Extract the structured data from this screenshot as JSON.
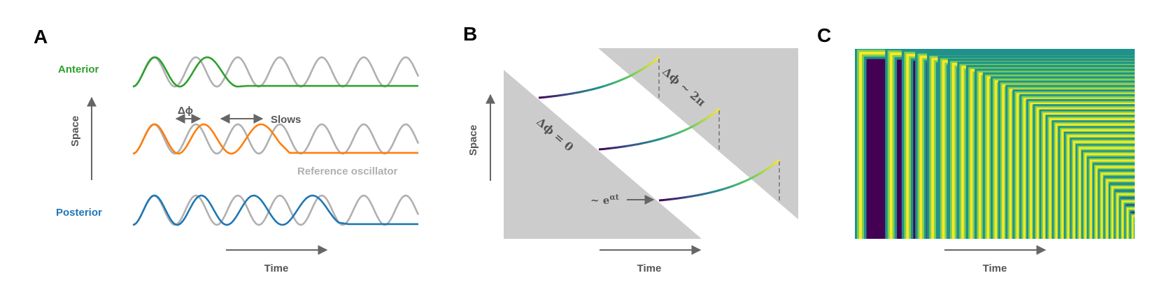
{
  "panels": {
    "a": {
      "letter": "A",
      "anterior_label": "Anterior",
      "posterior_label": "Posterior",
      "space_label": "Space",
      "time_label": "Time",
      "delta_phi_label": "Δϕ",
      "slows_label": "Slows",
      "reference_label": "Reference oscillator"
    },
    "b": {
      "letter": "B",
      "space_label": "Space",
      "time_label": "Time",
      "dphi_zero_label": "Δϕ = 0",
      "dphi_2pi_label": "Δϕ ~ 2π",
      "growth_label": "~ e",
      "growth_exp": "αt"
    },
    "c": {
      "letter": "C",
      "time_label": "Time"
    }
  },
  "colors": {
    "anterior": "#2ca02c",
    "middle": "#ff7f0e",
    "posterior": "#1f77b4",
    "reference": "#b0b0b0",
    "arrow": "#666666",
    "triangle": "#cccccc",
    "viridis_dark": "#440154",
    "viridis_bright": "#fde725"
  }
}
